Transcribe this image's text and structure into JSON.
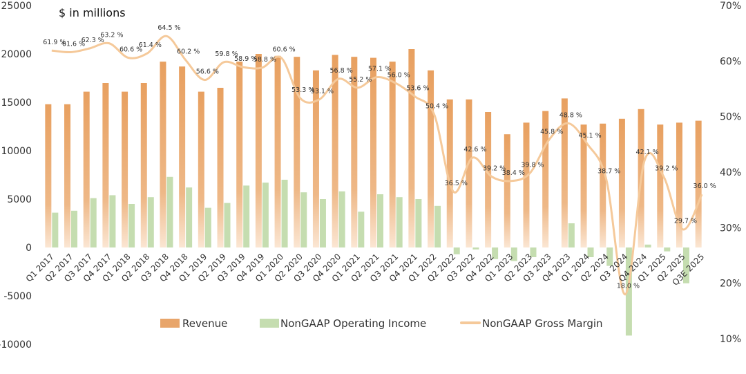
{
  "chart_data": {
    "type": "bar+line",
    "title": "$ in millions",
    "categories": [
      "Q1 2017",
      "Q2 2017",
      "Q3 2017",
      "Q4 2017",
      "Q1 2018",
      "Q2 2018",
      "Q3 2018",
      "Q4 2018",
      "Q1 2019",
      "Q2 2019",
      "Q3 2019",
      "Q4 2019",
      "Q1 2020",
      "Q2 2020",
      "Q3 2020",
      "Q4 2020",
      "Q1 2021",
      "Q2 2021",
      "Q3 2021",
      "Q4 2021",
      "Q1 2022",
      "Q2 2022",
      "Q3 2022",
      "Q4 2022",
      "Q1 2023",
      "Q2 2023",
      "Q3 2023",
      "Q4 2023",
      "Q1 2024",
      "Q2 2024",
      "Q3 2024",
      "Q4 2024",
      "Q1 2025",
      "Q2 2025",
      "Q3E 2025"
    ],
    "series": [
      {
        "name": "Revenue",
        "axis": "left",
        "type": "bar",
        "color": "#E8A56A",
        "values": [
          14800,
          14800,
          16100,
          17000,
          16100,
          17000,
          19200,
          18700,
          16100,
          16500,
          19200,
          20000,
          19800,
          19700,
          18300,
          19900,
          19700,
          19600,
          19200,
          20500,
          18300,
          15300,
          15300,
          14000,
          11700,
          12900,
          14100,
          15400,
          12700,
          12800,
          13300,
          14300,
          12700,
          12900,
          13100
        ]
      },
      {
        "name": "NonGAAP Operating Income",
        "axis": "left",
        "type": "bar",
        "color": "#C5DDB0",
        "values": [
          3600,
          3800,
          5100,
          5400,
          4500,
          5200,
          7300,
          6200,
          4100,
          4600,
          6400,
          6700,
          7000,
          5700,
          5000,
          5800,
          3700,
          5500,
          5200,
          5000,
          4300,
          -700,
          -200,
          -1200,
          -1400,
          -1000,
          0,
          2500,
          -1000,
          -1900,
          -9100,
          300,
          -400,
          -3700,
          0
        ]
      },
      {
        "name": "NonGAAP Gross Margin",
        "axis": "right",
        "type": "line",
        "color": "#F5C99A",
        "values": [
          61.9,
          61.6,
          62.3,
          63.2,
          60.6,
          61.4,
          64.5,
          60.2,
          56.6,
          59.8,
          58.9,
          58.8,
          60.6,
          53.3,
          53.1,
          56.8,
          55.2,
          57.1,
          56.0,
          53.6,
          50.4,
          36.5,
          42.6,
          39.2,
          38.4,
          39.8,
          45.8,
          48.8,
          45.1,
          38.7,
          18.0,
          42.1,
          39.2,
          29.7,
          36.0
        ],
        "labels": [
          "61.9 %",
          "61.6 %",
          "62.3 %",
          "63.2 %",
          "60.6 %",
          "61.4 %",
          "64.5 %",
          "60.2 %",
          "56.6 %",
          "59.8 %",
          "58.9 %",
          "58.8 %",
          "60.6 %",
          "53.3 %",
          "53.1 %",
          "56.8 %",
          "55.2 %",
          "57.1 %",
          "56.0 %",
          "53.6 %",
          "50.4 %",
          "36.5 %",
          "42.6 %",
          "39.2 %",
          "38.4 %",
          "39.8 %",
          "45.8 %",
          "48.8 %",
          "45.1 %",
          "38.7 %",
          "18.0 %",
          "42.1 %",
          "39.2 %",
          "29.7 %",
          "36.0 %"
        ]
      }
    ],
    "y_left": {
      "min": -10000,
      "max": 25000,
      "ticks": [
        25000,
        20000,
        15000,
        10000,
        5000,
        0,
        -5000,
        -10000
      ]
    },
    "y_right": {
      "min": 10,
      "max": 70,
      "ticks": [
        "70%",
        "60%",
        "50%",
        "40%",
        "30%",
        "20%",
        "10%"
      ],
      "tick_values": [
        70,
        60,
        50,
        40,
        30,
        20,
        10
      ]
    },
    "grid": false,
    "legend": "bottom"
  }
}
